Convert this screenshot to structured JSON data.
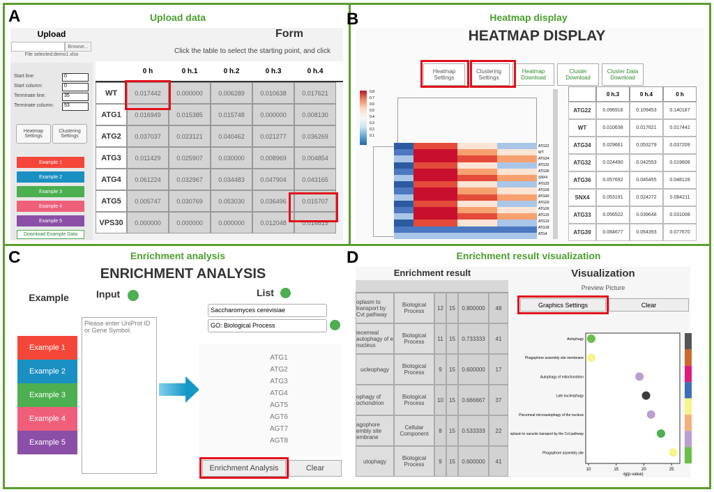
{
  "panel_a": {
    "letter": "A",
    "title": "Upload data",
    "upload_title": "Upload",
    "browse": "Browse...",
    "file_note": "File selected:demo1.xlsx",
    "fields": [
      {
        "label": "Start line:",
        "value": "0"
      },
      {
        "label": "Start column:",
        "value": "0"
      },
      {
        "label": "Terminate line:",
        "value": "35"
      },
      {
        "label": "Terminate column:",
        "value": "53"
      }
    ],
    "settings_buttons": [
      "Heatmap Settings",
      "Clustering Settings"
    ],
    "examples": [
      "Example 1",
      "Example 2",
      "Example 3",
      "Example 4",
      "Example 5"
    ],
    "download": "Download Example Data",
    "form_title": "Form",
    "instruction": "Click the table to select the starting point, and click",
    "table": {
      "header": [
        "0 h",
        "0 h.1",
        "0 h.2",
        "0 h.3",
        "0 h.4"
      ],
      "rows": [
        [
          "WT",
          "0.017442",
          "0.000000",
          "0.006289",
          "0.010638",
          "0.017621"
        ],
        [
          "ATG1",
          "0.016949",
          "0.015385",
          "0.015748",
          "0.000000",
          "0.008130"
        ],
        [
          "ATG2",
          "0.037037",
          "0.023121",
          "0.040462",
          "0.021277",
          "0.036269"
        ],
        [
          "ATG3",
          "0.011429",
          "0.025907",
          "0.030000",
          "0.008969",
          "0.004854"
        ],
        [
          "ATG4",
          "0.061224",
          "0.032967",
          "0.034483",
          "0.047904",
          "0.043165"
        ],
        [
          "ATG5",
          "0.005747",
          "0.030769",
          "0.053030",
          "0.036496",
          "0.015707"
        ],
        [
          "VPS30",
          "0.000000",
          "0.000000",
          "0.000000",
          "0.012048",
          "0.014815"
        ]
      ]
    }
  },
  "panel_b": {
    "letter": "B",
    "title": "Heatmap display",
    "heading": "HEATMAP DISPLAY",
    "buttons": [
      "Heatmap Settings",
      "Clustering Settings",
      "Heatmap Download",
      "Cluster Download",
      "Cluster Data Download"
    ],
    "colorbar_ticks": [
      "0.8",
      "0.7",
      "0.6",
      "0.5",
      "0.4",
      "0.3",
      "0.2",
      "0.1"
    ],
    "row_labels": [
      "ATG22",
      "WT",
      "ATG34",
      "ATG32",
      "ATG36",
      "SNX4",
      "ATG33",
      "ATG39",
      "ATG40",
      "ATG20",
      "ATG26",
      "ATG15",
      "ATG19",
      "ATG18",
      "ATG4"
    ],
    "table": {
      "header": [
        "0 h.3",
        "0 h.4",
        "0 h"
      ],
      "rows": [
        [
          "ATG22",
          "0.096916",
          "0.109453",
          "0.140187"
        ],
        [
          "WT",
          "0.010638",
          "0.017621",
          "0.017442"
        ],
        [
          "ATG34",
          "0.029661",
          "0.053279",
          "0.037209"
        ],
        [
          "ATG32",
          "0.024490",
          "0.042553",
          "0.019608"
        ],
        [
          "ATG36",
          "0.057692",
          "0.045455",
          "0.048128"
        ],
        [
          "SNX4",
          "0.053191",
          "0.024272",
          "0.084211"
        ],
        [
          "ATG33",
          "0.056522",
          "0.039648",
          "0.031008"
        ],
        [
          "ATG39",
          "0.084677",
          "0.054393",
          "0.077670"
        ]
      ]
    }
  },
  "panel_c": {
    "letter": "C",
    "title": "Enrichment analysis",
    "heading": "ENRICHMENT ANALYSIS",
    "example_label": "Example",
    "input_label": "Input",
    "list_label": "List",
    "placeholder": "Please enter UniProt ID or Gene Symbol.",
    "species": "Saccharomyces cerevisiae",
    "ontology": "GO: Biological Process",
    "examples": [
      "Example 1",
      "Example 2",
      "Example 3",
      "Example 4",
      "Example 5"
    ],
    "genes": [
      "ATG1",
      "ATG2",
      "ATG3",
      "ATG4",
      "AGT5",
      "AGT6",
      "AGT7",
      "AGT8"
    ],
    "run_button": "Enrichment Analysis",
    "clear_button": "Clear"
  },
  "panel_d": {
    "letter": "D",
    "title": "Enrichment result visualization",
    "result_title": "Enrichment result",
    "vis_title": "Visualization",
    "preview": "Preview Picture",
    "graphics_button": "Graphics Settings",
    "clear_button": "Clear",
    "table": {
      "rows": [
        [
          "oplasm to transport by Cvt pathway",
          "Biological Process",
          "12",
          "15",
          "0.800000",
          "48"
        ],
        [
          "iecemeal autophagy of e nucleus",
          "Biological Process",
          "11",
          "15",
          "0.733333",
          "41"
        ],
        [
          "ucleophagy",
          "Biological Process",
          "9",
          "15",
          "0.600000",
          "17"
        ],
        [
          "ophagy of ochondrion",
          "Biological Process",
          "10",
          "15",
          "0.666667",
          "37"
        ],
        [
          "agophore embly site embrane",
          "Cellular Component",
          "8",
          "15",
          "0.533333",
          "22"
        ],
        [
          "utophagy",
          "Biological Process",
          "9",
          "15",
          "0.600000",
          "41"
        ]
      ]
    },
    "chart_data": {
      "type": "scatter",
      "xlabel": "-lg(p-value)",
      "categories": [
        "Autophagy",
        "Phagophore assembly site membrane",
        "Autophagy of mitochondrion",
        "Late nucleophagy",
        "Piecemeal microautophagy of the nucleus",
        "oplasm to vacuole transport by the Cvt pathway",
        "Phagophore assembly site"
      ],
      "x": [
        10.5,
        10.5,
        19.2,
        20.4,
        21.3,
        23.1,
        25.3
      ],
      "colors": [
        "#6abf4b",
        "#f6f48a",
        "#b9a0d0",
        "#3b3b3b",
        "#b9a0d0",
        "#4caf50",
        "#f6f48a"
      ],
      "xlim": [
        9.5,
        26.5
      ],
      "xticks": [
        10,
        15,
        20,
        25
      ]
    }
  }
}
